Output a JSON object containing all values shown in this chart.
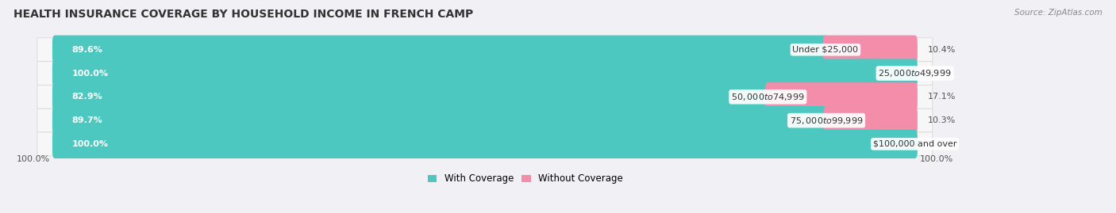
{
  "title": "HEALTH INSURANCE COVERAGE BY HOUSEHOLD INCOME IN FRENCH CAMP",
  "source": "Source: ZipAtlas.com",
  "categories": [
    "Under $25,000",
    "$25,000 to $49,999",
    "$50,000 to $74,999",
    "$75,000 to $99,999",
    "$100,000 and over"
  ],
  "with_coverage": [
    89.6,
    100.0,
    82.9,
    89.7,
    100.0
  ],
  "without_coverage": [
    10.4,
    0.0,
    17.1,
    10.3,
    0.0
  ],
  "color_with": "#4DC8C0",
  "color_without": "#F48DAA",
  "bg_color": "#f0f0f5",
  "row_bg_color": "#f7f7f7",
  "row_alt_color": "#ebebeb",
  "title_fontsize": 10,
  "label_fontsize": 8,
  "cat_fontsize": 8,
  "legend_fontsize": 8.5,
  "bar_height": 0.62,
  "bar_rounding": 0.3,
  "figsize": [
    14.06,
    2.69
  ],
  "dpi": 100,
  "xlim_left": -5,
  "xlim_right": 125,
  "bar_max": 100
}
